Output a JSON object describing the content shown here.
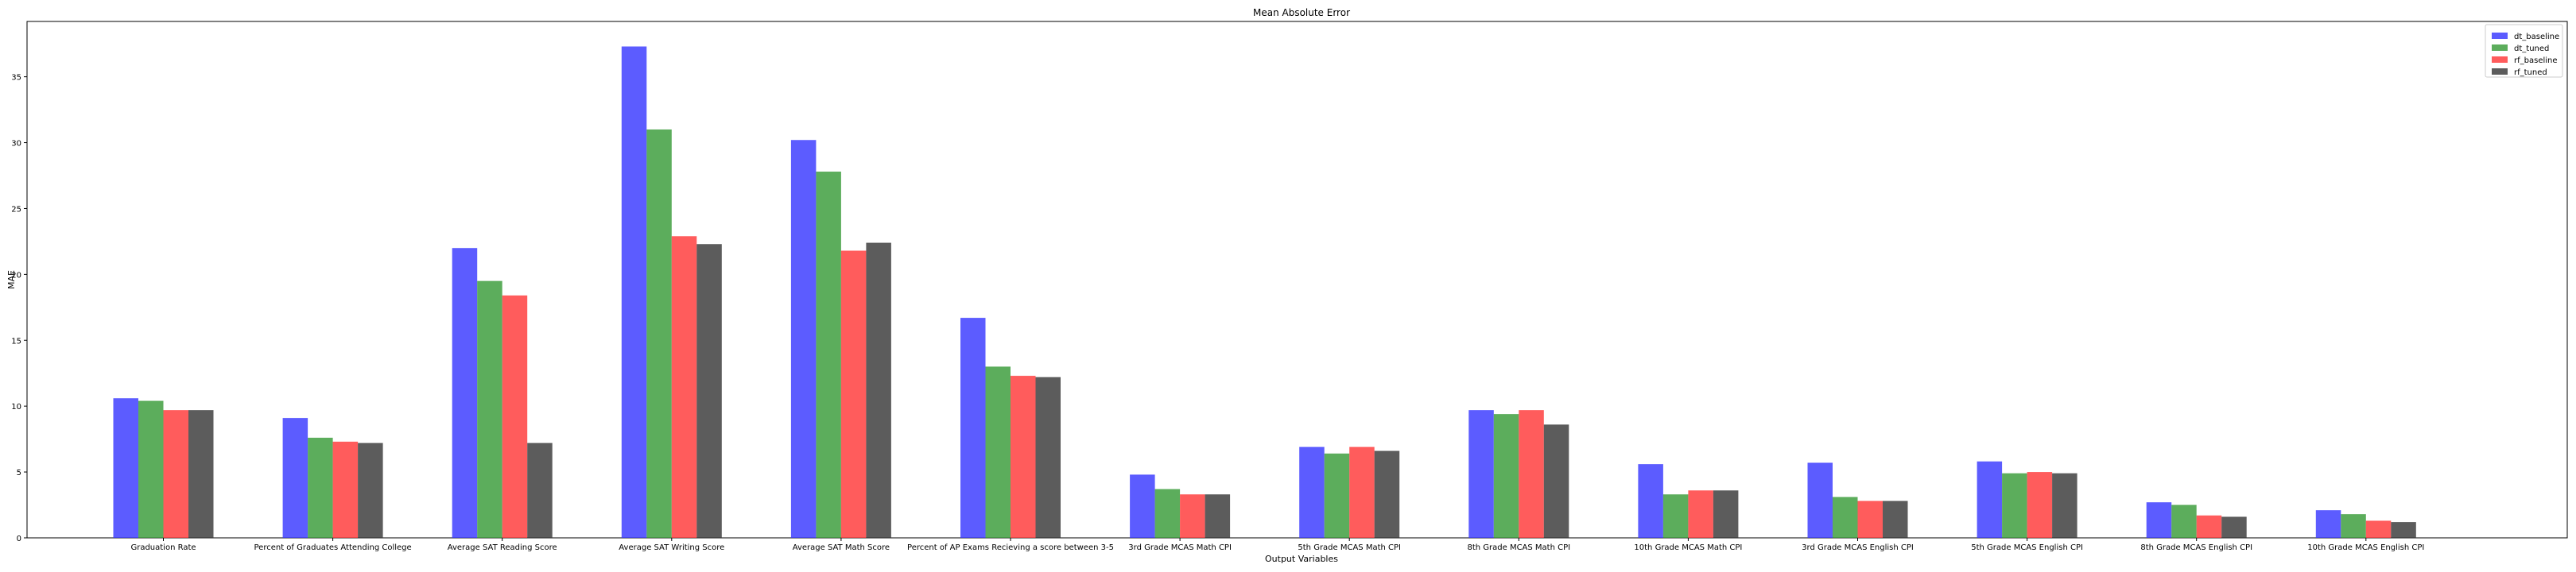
{
  "chart_data": {
    "type": "bar",
    "title": "Mean Absolute Error",
    "xlabel": "Output Variables",
    "ylabel": "MAE",
    "ylim": [
      0,
      39.2
    ],
    "yticks": [
      0,
      5,
      10,
      15,
      20,
      25,
      30,
      35
    ],
    "legend_position": "top-right",
    "categories": [
      "Graduation Rate",
      "Percent of Graduates Attending College",
      "Average SAT Reading Score",
      "Average SAT Writing Score",
      "Average SAT Math Score",
      "Percent of AP Exams Recieving a score between 3-5",
      "3rd Grade MCAS Math CPI",
      "5th Grade MCAS Math CPI",
      "8th Grade MCAS Math CPI",
      "10th Grade MCAS Math CPI",
      "3rd Grade MCAS English CPI",
      "5th Grade MCAS English CPI",
      "8th Grade MCAS English CPI",
      "10th Grade MCAS English CPI"
    ],
    "series": [
      {
        "name": "dt_baseline",
        "color": "#3333ff",
        "values": [
          10.6,
          9.1,
          22.0,
          37.3,
          30.2,
          16.7,
          4.8,
          6.9,
          9.7,
          5.6,
          5.7,
          5.8,
          2.7,
          2.1
        ]
      },
      {
        "name": "dt_tuned",
        "color": "#339933",
        "values": [
          10.4,
          7.6,
          19.5,
          31.0,
          27.8,
          13.0,
          3.7,
          6.4,
          9.4,
          3.3,
          3.1,
          4.9,
          2.5,
          1.8
        ]
      },
      {
        "name": "rf_baseline",
        "color": "#ff3333",
        "values": [
          9.7,
          7.3,
          18.4,
          22.9,
          21.8,
          12.3,
          3.3,
          6.9,
          9.7,
          3.6,
          2.8,
          5.0,
          1.7,
          1.3
        ]
      },
      {
        "name": "rf_tuned",
        "color": "#333333",
        "values": [
          9.7,
          7.2,
          7.2,
          22.3,
          22.4,
          12.2,
          3.3,
          6.6,
          8.6,
          3.6,
          2.8,
          4.9,
          1.6,
          1.2
        ]
      }
    ]
  }
}
